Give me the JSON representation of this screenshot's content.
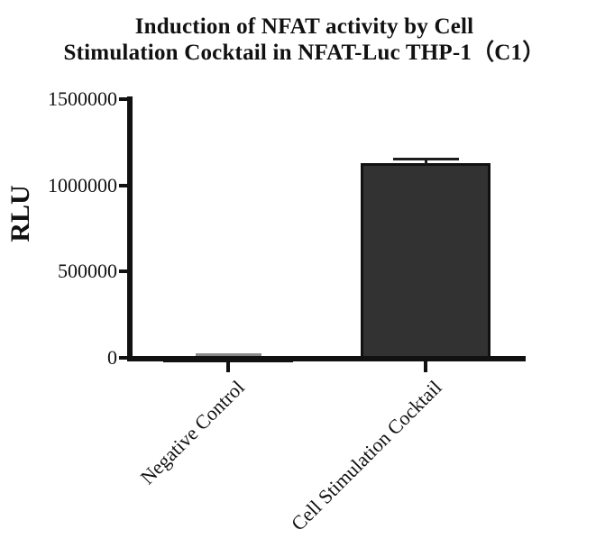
{
  "chart_data": {
    "type": "bar",
    "title": "Induction of NFAT activity by Cell Stimulation Cocktail in NFAT-Luc THP-1（C1）",
    "title_lines": [
      "Induction of NFAT activity by Cell",
      "Stimulation Cocktail in NFAT-Luc THP-1（C1）"
    ],
    "ylabel": "RLU",
    "xlabel": "",
    "categories": [
      "Negative Control",
      "Cell Stimulation Cocktail"
    ],
    "values": [
      4000,
      1128000
    ],
    "errors_sd": [
      17000,
      25000
    ],
    "ylim": [
      0,
      1500000
    ],
    "yticks": [
      0,
      500000,
      1000000,
      1500000
    ],
    "ytick_labels": [
      "0",
      "500000",
      "1000000",
      "1500000"
    ],
    "grid": false,
    "legend": "none",
    "x_label_rotation_deg": 45,
    "colors": {
      "bar_fill": "#323232",
      "bar_border": "#111111",
      "axis": "#111111",
      "text": "#111111",
      "error_caps": [
        "#8a8a8a",
        "#1c1c1c"
      ]
    }
  }
}
